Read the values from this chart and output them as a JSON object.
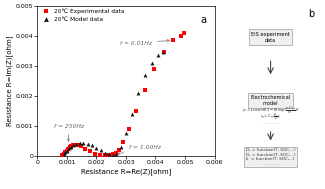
{
  "title_a": "a",
  "title_b": "b",
  "xlabel": "Resistance R=Re(Z)[ohm]",
  "ylabel": "Resistance R=Im(Z)[ohm]",
  "xlim": [
    0,
    0.006
  ],
  "ylim": [
    0,
    0.005
  ],
  "xticks": [
    0,
    0.001,
    0.002,
    0.003,
    0.004,
    0.005,
    0.006
  ],
  "yticks": [
    0,
    0.001,
    0.002,
    0.003,
    0.004,
    0.005
  ],
  "exp_color": "#FF0000",
  "model_color": "#1a1a1a",
  "legend_exp": "20℃ Experimental data",
  "legend_model": "20℃ Model data",
  "annotation_250hz_text": "f = 250Hz",
  "annotation_1hz_text": "f = 1.00Hz",
  "annotation_001hz_text": "f = 0.01Hz",
  "bg_color": "#ffffff",
  "exp_re": [
    0.00085,
    0.0009,
    0.00095,
    0.001,
    0.00105,
    0.0011,
    0.00115,
    0.0012,
    0.00125,
    0.0013,
    0.00138,
    0.00148,
    0.00162,
    0.00178,
    0.00195,
    0.00212,
    0.00228,
    0.00242,
    0.00255,
    0.00265,
    0.00275,
    0.0029,
    0.0031,
    0.00335,
    0.00365,
    0.00395,
    0.00428,
    0.0046,
    0.00485,
    0.00495
  ],
  "exp_im": [
    4e-05,
    8e-05,
    0.00012,
    0.00018,
    0.00024,
    0.00029,
    0.00033,
    0.00036,
    0.00038,
    0.00038,
    0.00036,
    0.00032,
    0.00024,
    0.00015,
    8e-05,
    4e-05,
    3e-05,
    3e-05,
    5e-05,
    0.0001,
    0.0002,
    0.00045,
    0.0009,
    0.0015,
    0.0022,
    0.0029,
    0.00345,
    0.00385,
    0.004,
    0.0041
  ],
  "model_re": [
    0.0009,
    0.00095,
    0.001,
    0.00107,
    0.00114,
    0.00122,
    0.00132,
    0.00143,
    0.00156,
    0.0017,
    0.00185,
    0.002,
    0.00215,
    0.0023,
    0.00243,
    0.00255,
    0.00268,
    0.00283,
    0.003,
    0.0032,
    0.00342,
    0.00365,
    0.00388,
    0.00408,
    0.00425
  ],
  "model_im": [
    6e-05,
    0.00012,
    0.00018,
    0.00025,
    0.00031,
    0.00036,
    0.0004,
    0.00042,
    0.00042,
    0.0004,
    0.00035,
    0.00028,
    0.00019,
    0.00011,
    5e-05,
    3e-05,
    8e-05,
    0.0003,
    0.00075,
    0.0014,
    0.0021,
    0.0027,
    0.0031,
    0.00335,
    0.00345
  ],
  "box1_title": "EIS experiment",
  "box1_sub": "data",
  "box2_title": "Electrochemical",
  "box2_sub": "model",
  "box3_line1": "D₂ = function(T, SOC,...)",
  "box3_line2": "D₁ = function(T, SOC,...)",
  "box3_line3": "k  = function(T, SOC,...)",
  "box3_dots": ". . . . . . . ."
}
